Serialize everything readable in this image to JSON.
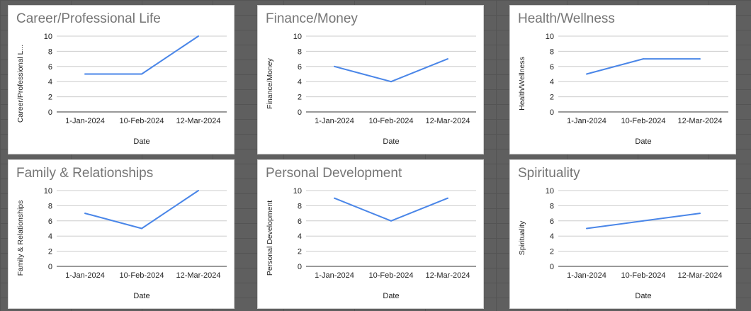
{
  "colors": {
    "line": "#4a86e8",
    "grid": "#cccccc",
    "axis": "#333333",
    "title": "#757575"
  },
  "chart_data": [
    {
      "type": "line",
      "title": "Career/Professional Life",
      "xlabel": "Date",
      "ylabel": "Career/Professional L...",
      "categories": [
        "1-Jan-2024",
        "10-Feb-2024",
        "12-Mar-2024"
      ],
      "series": [
        {
          "values": [
            5,
            5,
            10
          ]
        }
      ],
      "yticks": [
        "0",
        "2",
        "4",
        "6",
        "8",
        "10"
      ],
      "ylim": [
        0,
        10
      ],
      "grid": true
    },
    {
      "type": "line",
      "title": "Finance/Money",
      "xlabel": "Date",
      "ylabel": "Finance/Money",
      "categories": [
        "1-Jan-2024",
        "10-Feb-2024",
        "12-Mar-2024"
      ],
      "series": [
        {
          "values": [
            6,
            4,
            7
          ]
        }
      ],
      "yticks": [
        "0",
        "2",
        "4",
        "6",
        "8",
        "10"
      ],
      "ylim": [
        0,
        10
      ],
      "grid": true
    },
    {
      "type": "line",
      "title": "Health/Wellness",
      "xlabel": "Date",
      "ylabel": "Health/Wellness",
      "categories": [
        "1-Jan-2024",
        "10-Feb-2024",
        "12-Mar-2024"
      ],
      "series": [
        {
          "values": [
            5,
            7,
            7
          ]
        }
      ],
      "yticks": [
        "0",
        "2",
        "4",
        "6",
        "8",
        "10"
      ],
      "ylim": [
        0,
        10
      ],
      "grid": true
    },
    {
      "type": "line",
      "title": "Family & Relationships",
      "xlabel": "Date",
      "ylabel": "Family & Relationships",
      "categories": [
        "1-Jan-2024",
        "10-Feb-2024",
        "12-Mar-2024"
      ],
      "series": [
        {
          "values": [
            7,
            5,
            10
          ]
        }
      ],
      "yticks": [
        "0",
        "2",
        "4",
        "6",
        "8",
        "10"
      ],
      "ylim": [
        0,
        10
      ],
      "grid": true
    },
    {
      "type": "line",
      "title": "Personal Development",
      "xlabel": "Date",
      "ylabel": "Personal Development",
      "categories": [
        "1-Jan-2024",
        "10-Feb-2024",
        "12-Mar-2024"
      ],
      "series": [
        {
          "values": [
            9,
            6,
            9
          ]
        }
      ],
      "yticks": [
        "0",
        "2",
        "4",
        "6",
        "8",
        "10"
      ],
      "ylim": [
        0,
        10
      ],
      "grid": true
    },
    {
      "type": "line",
      "title": "Spirituality",
      "xlabel": "Date",
      "ylabel": "Spirituality",
      "categories": [
        "1-Jan-2024",
        "10-Feb-2024",
        "12-Mar-2024"
      ],
      "series": [
        {
          "values": [
            5,
            6,
            7
          ]
        }
      ],
      "yticks": [
        "0",
        "2",
        "4",
        "6",
        "8",
        "10"
      ],
      "ylim": [
        0,
        10
      ],
      "grid": true
    }
  ]
}
